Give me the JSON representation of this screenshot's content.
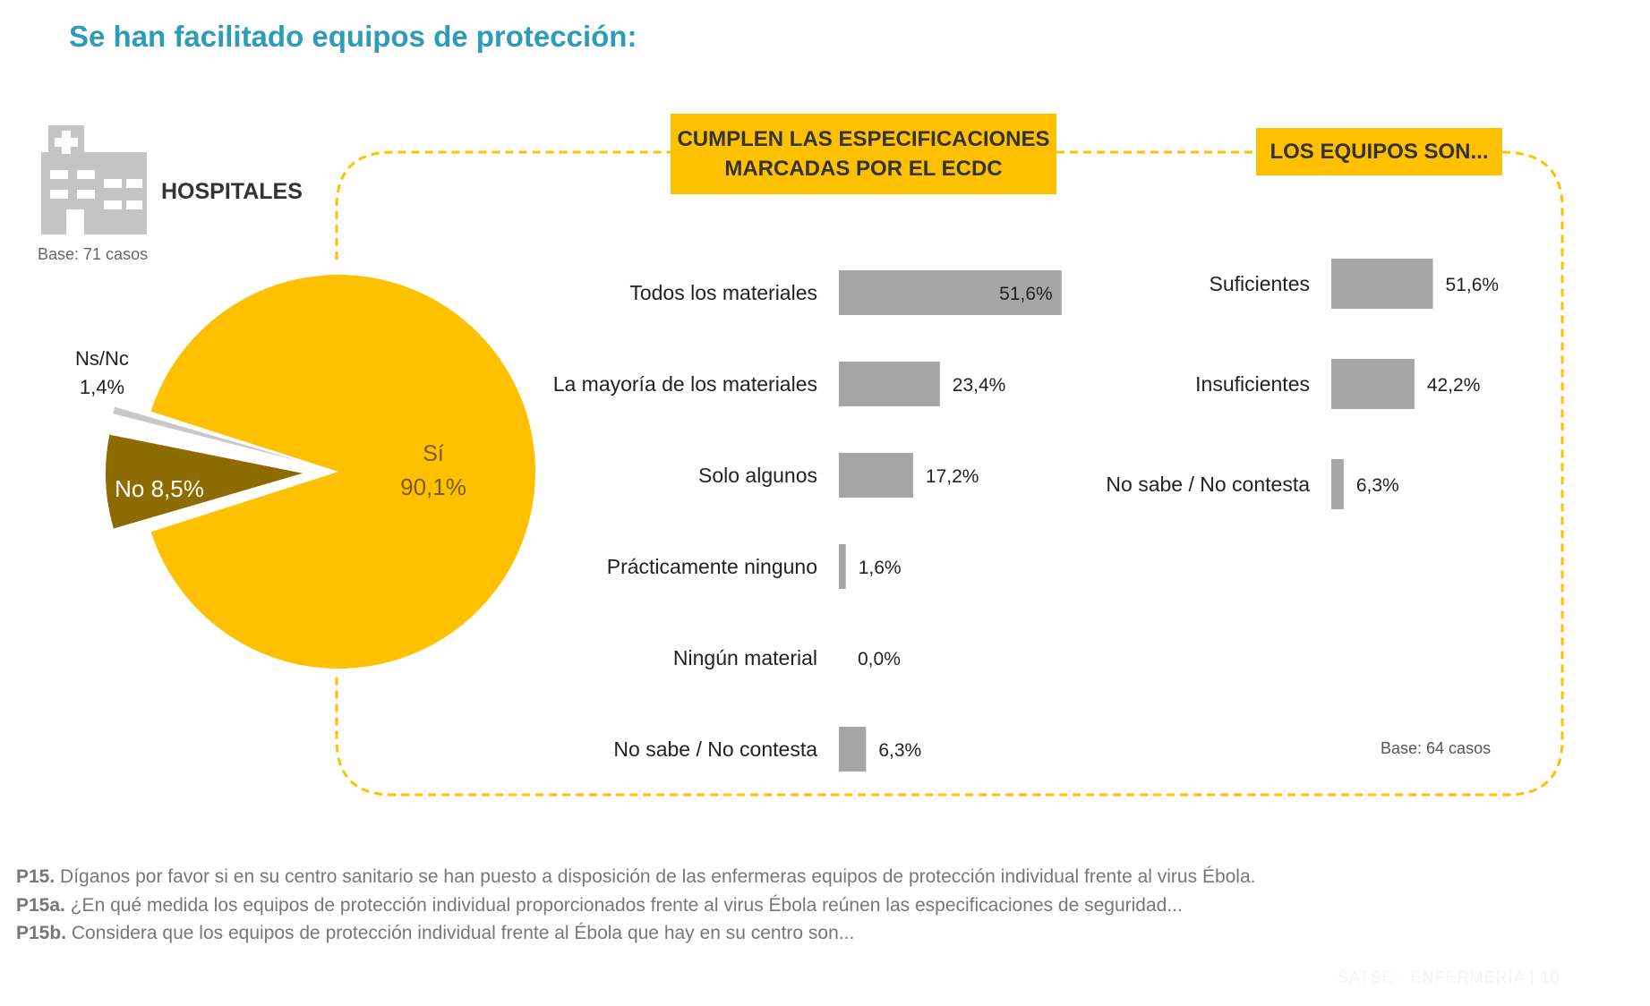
{
  "title": "Se han facilitado equipos de protección:",
  "hospitals": {
    "label": "HOSPITALES",
    "base": "Base: 71 casos",
    "icon": "hospital-icon"
  },
  "colors": {
    "accent_yellow": "#ffc000",
    "dark_gold": "#8c6b00",
    "gray_bar": "#a6a6a6",
    "light_gray": "#c8c8c8",
    "title_blue": "#2e9bb8"
  },
  "headers": {
    "ecdc_line1": "CUMPLEN LAS ESPECIFICACIONES",
    "ecdc_line2": "MARCADAS POR EL ECDC",
    "equipos": "LOS EQUIPOS SON..."
  },
  "base_right": "Base: 64 casos",
  "footnotes": [
    {
      "code": "P15.",
      "text": "Díganos por favor si en su centro sanitario se han puesto a disposición de las enfermeras equipos de protección individual frente al virus Ébola."
    },
    {
      "code": "P15a.",
      "text": "¿En qué medida los equipos de protección individual proporcionados frente al virus Ébola reúnen las especificaciones de seguridad..."
    },
    {
      "code": "P15b.",
      "text": "Considera que los equipos de protección individual frente al Ébola que hay en su centro son..."
    }
  ],
  "watermark": "SATSE · ENFERMERÍA | 10",
  "chart_data": [
    {
      "type": "pie",
      "slices": [
        {
          "label": "Sí",
          "value": 90.1,
          "display": "90,1%",
          "color": "#ffc000"
        },
        {
          "label": "No",
          "value": 8.5,
          "display": "No 8,5%",
          "color": "#8c6b00"
        },
        {
          "label": "Ns/Nc",
          "value": 1.4,
          "display": "1,4%",
          "color": "#c8c8c8"
        }
      ]
    },
    {
      "type": "bar",
      "orientation": "horizontal",
      "categories": [
        "Todos los materiales",
        "La mayoría de los materiales",
        "Solo algunos",
        "Prácticamente ninguno",
        "Ningún material",
        "No sabe / No contesta"
      ],
      "values": [
        51.6,
        23.4,
        17.2,
        1.6,
        0.0,
        6.3
      ],
      "value_labels": [
        "51,6%",
        "23,4%",
        "17,2%",
        "1,6%",
        "0,0%",
        "6,3%"
      ],
      "color": "#a6a6a6"
    },
    {
      "type": "bar",
      "orientation": "horizontal",
      "categories": [
        "Suficientes",
        "Insuficientes",
        "No sabe / No contesta"
      ],
      "values": [
        51.6,
        42.2,
        6.3
      ],
      "value_labels": [
        "51,6%",
        "42,2%",
        "6,3%"
      ],
      "color": "#a6a6a6"
    }
  ]
}
